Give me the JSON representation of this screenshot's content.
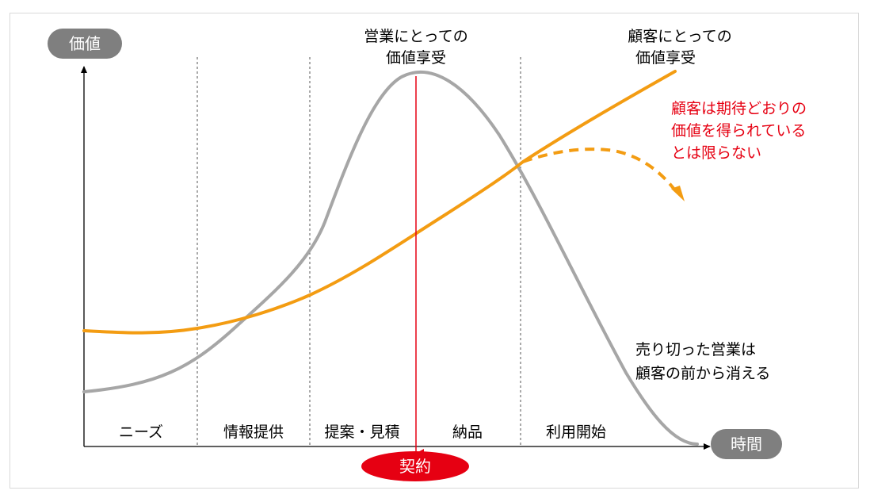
{
  "axes": {
    "y_label": "価値",
    "x_label": "時間"
  },
  "phases": [
    "ニーズ",
    "情報提供",
    "提案・見積",
    "納品",
    "利用開始"
  ],
  "contract_label": "契約",
  "annotations": {
    "sales_value": [
      "営業にとっての",
      "価値享受"
    ],
    "customer_value": [
      "顧客にとっての",
      "価値享受"
    ],
    "customer_warning": [
      "顧客は期待どおりの",
      "価値を得られている",
      "とは限らない"
    ],
    "sales_disappear": [
      "売り切った営業は",
      "顧客の前から消える"
    ]
  },
  "colors": {
    "sales_curve": "#a6a6a6",
    "customer_curve": "#f39c12",
    "contract": "#e60012",
    "warning_text": "#e60012",
    "pill": "#7f7f7f",
    "axis": "#000000"
  }
}
